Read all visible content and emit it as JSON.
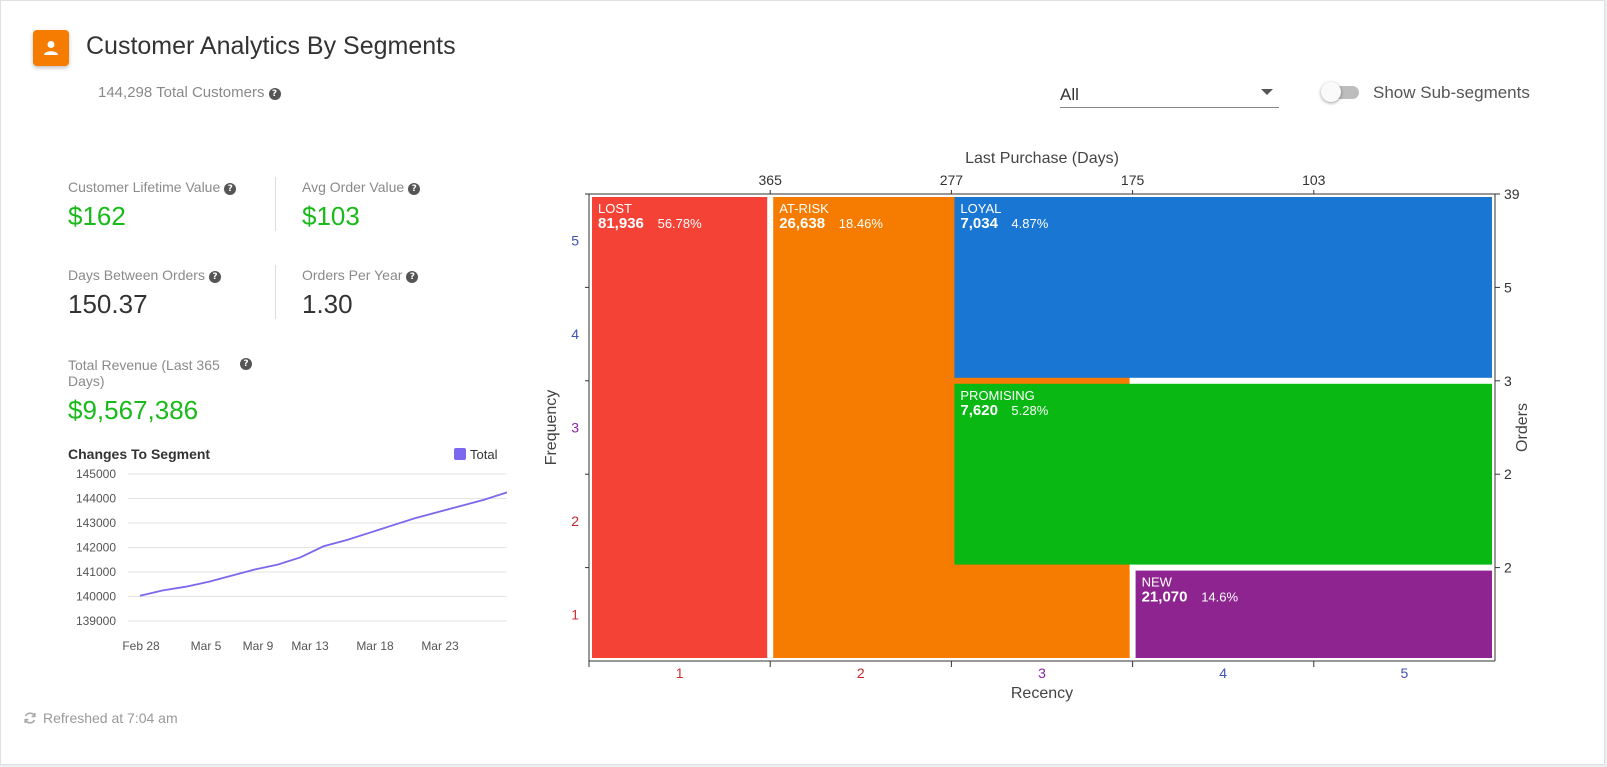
{
  "header": {
    "title": "Customer Analytics By Segments",
    "total_customers": "144,298 Total Customers",
    "icon": "person-icon",
    "accent_color": "#f57c00"
  },
  "filter": {
    "selected": "All"
  },
  "toggle": {
    "label": "Show Sub-segments",
    "on": false
  },
  "metrics": {
    "clv": {
      "label": "Customer Lifetime Value",
      "value": "$162"
    },
    "aov": {
      "label": "Avg Order Value",
      "value": "$103"
    },
    "days_between": {
      "label": "Days Between Orders",
      "value": "150.37"
    },
    "orders_per_year": {
      "label": "Orders Per Year",
      "value": "1.30"
    },
    "revenue": {
      "label": "Total Revenue (Last 365 Days)",
      "value": "$9,567,386"
    }
  },
  "changes_chart": {
    "title": "Changes To Segment",
    "legend": "Total",
    "color": "#7b68ee",
    "y_ticks": [
      "145000",
      "144000",
      "143000",
      "142000",
      "141000",
      "140000",
      "139000"
    ],
    "x_ticks": [
      "Feb 28",
      "Mar 5",
      "Mar 9",
      "Mar 13",
      "Mar 18",
      "Mar 23"
    ]
  },
  "chart_data": [
    {
      "type": "line",
      "title": "Changes To Segment",
      "series": [
        {
          "name": "Total",
          "x": [
            "Feb 26",
            "Feb 28",
            "Mar 1",
            "Mar 3",
            "Mar 5",
            "Mar 7",
            "Mar 9",
            "Mar 11",
            "Mar 13",
            "Mar 15",
            "Mar 17",
            "Mar 19",
            "Mar 21",
            "Mar 23",
            "Mar 25",
            "Mar 27",
            "Mar 29"
          ],
          "values": [
            140030,
            140250,
            140400,
            140600,
            140850,
            141100,
            141300,
            141600,
            142050,
            142300,
            142600,
            142900,
            143200,
            143450,
            143700,
            143950,
            144250
          ]
        }
      ],
      "ylim": [
        139000,
        145000
      ]
    },
    {
      "type": "heatmap",
      "xlabel": "Recency",
      "ylabel": "Frequency",
      "top_label": "Last Purchase (Days)",
      "right_label": "Orders",
      "x_ticks": [
        "1",
        "2",
        "3",
        "4",
        "5"
      ],
      "y_ticks": [
        "5",
        "4",
        "3",
        "2",
        "1"
      ],
      "top_ticks": [
        "365",
        "277",
        "175",
        "103"
      ],
      "right_ticks": [
        "39",
        "5",
        "3",
        "2",
        "2"
      ],
      "segments": [
        {
          "name": "LOST",
          "count": "81,936",
          "pct": "56.78%",
          "color": "#f44336",
          "recency": [
            1,
            1
          ],
          "frequency": [
            1,
            5
          ]
        },
        {
          "name": "AT-RISK",
          "count": "26,638",
          "pct": "18.46%",
          "color": "#f57c00",
          "recency": [
            2,
            3
          ],
          "frequency": [
            1,
            5
          ]
        },
        {
          "name": "LOYAL",
          "count": "7,034",
          "pct": "4.87%",
          "color": "#1976d2",
          "recency": [
            3,
            5
          ],
          "frequency": [
            4,
            5
          ]
        },
        {
          "name": "PROMISING",
          "count": "7,620",
          "pct": "5.28%",
          "color": "#0ab814",
          "recency": [
            3,
            5
          ],
          "frequency": [
            2,
            3
          ]
        },
        {
          "name": "NEW",
          "count": "21,070",
          "pct": "14.6%",
          "color": "#8e248f",
          "recency": [
            4,
            5
          ],
          "frequency": [
            1,
            1
          ]
        }
      ]
    }
  ],
  "footer": {
    "refreshed": "Refreshed at 7:04 am"
  }
}
